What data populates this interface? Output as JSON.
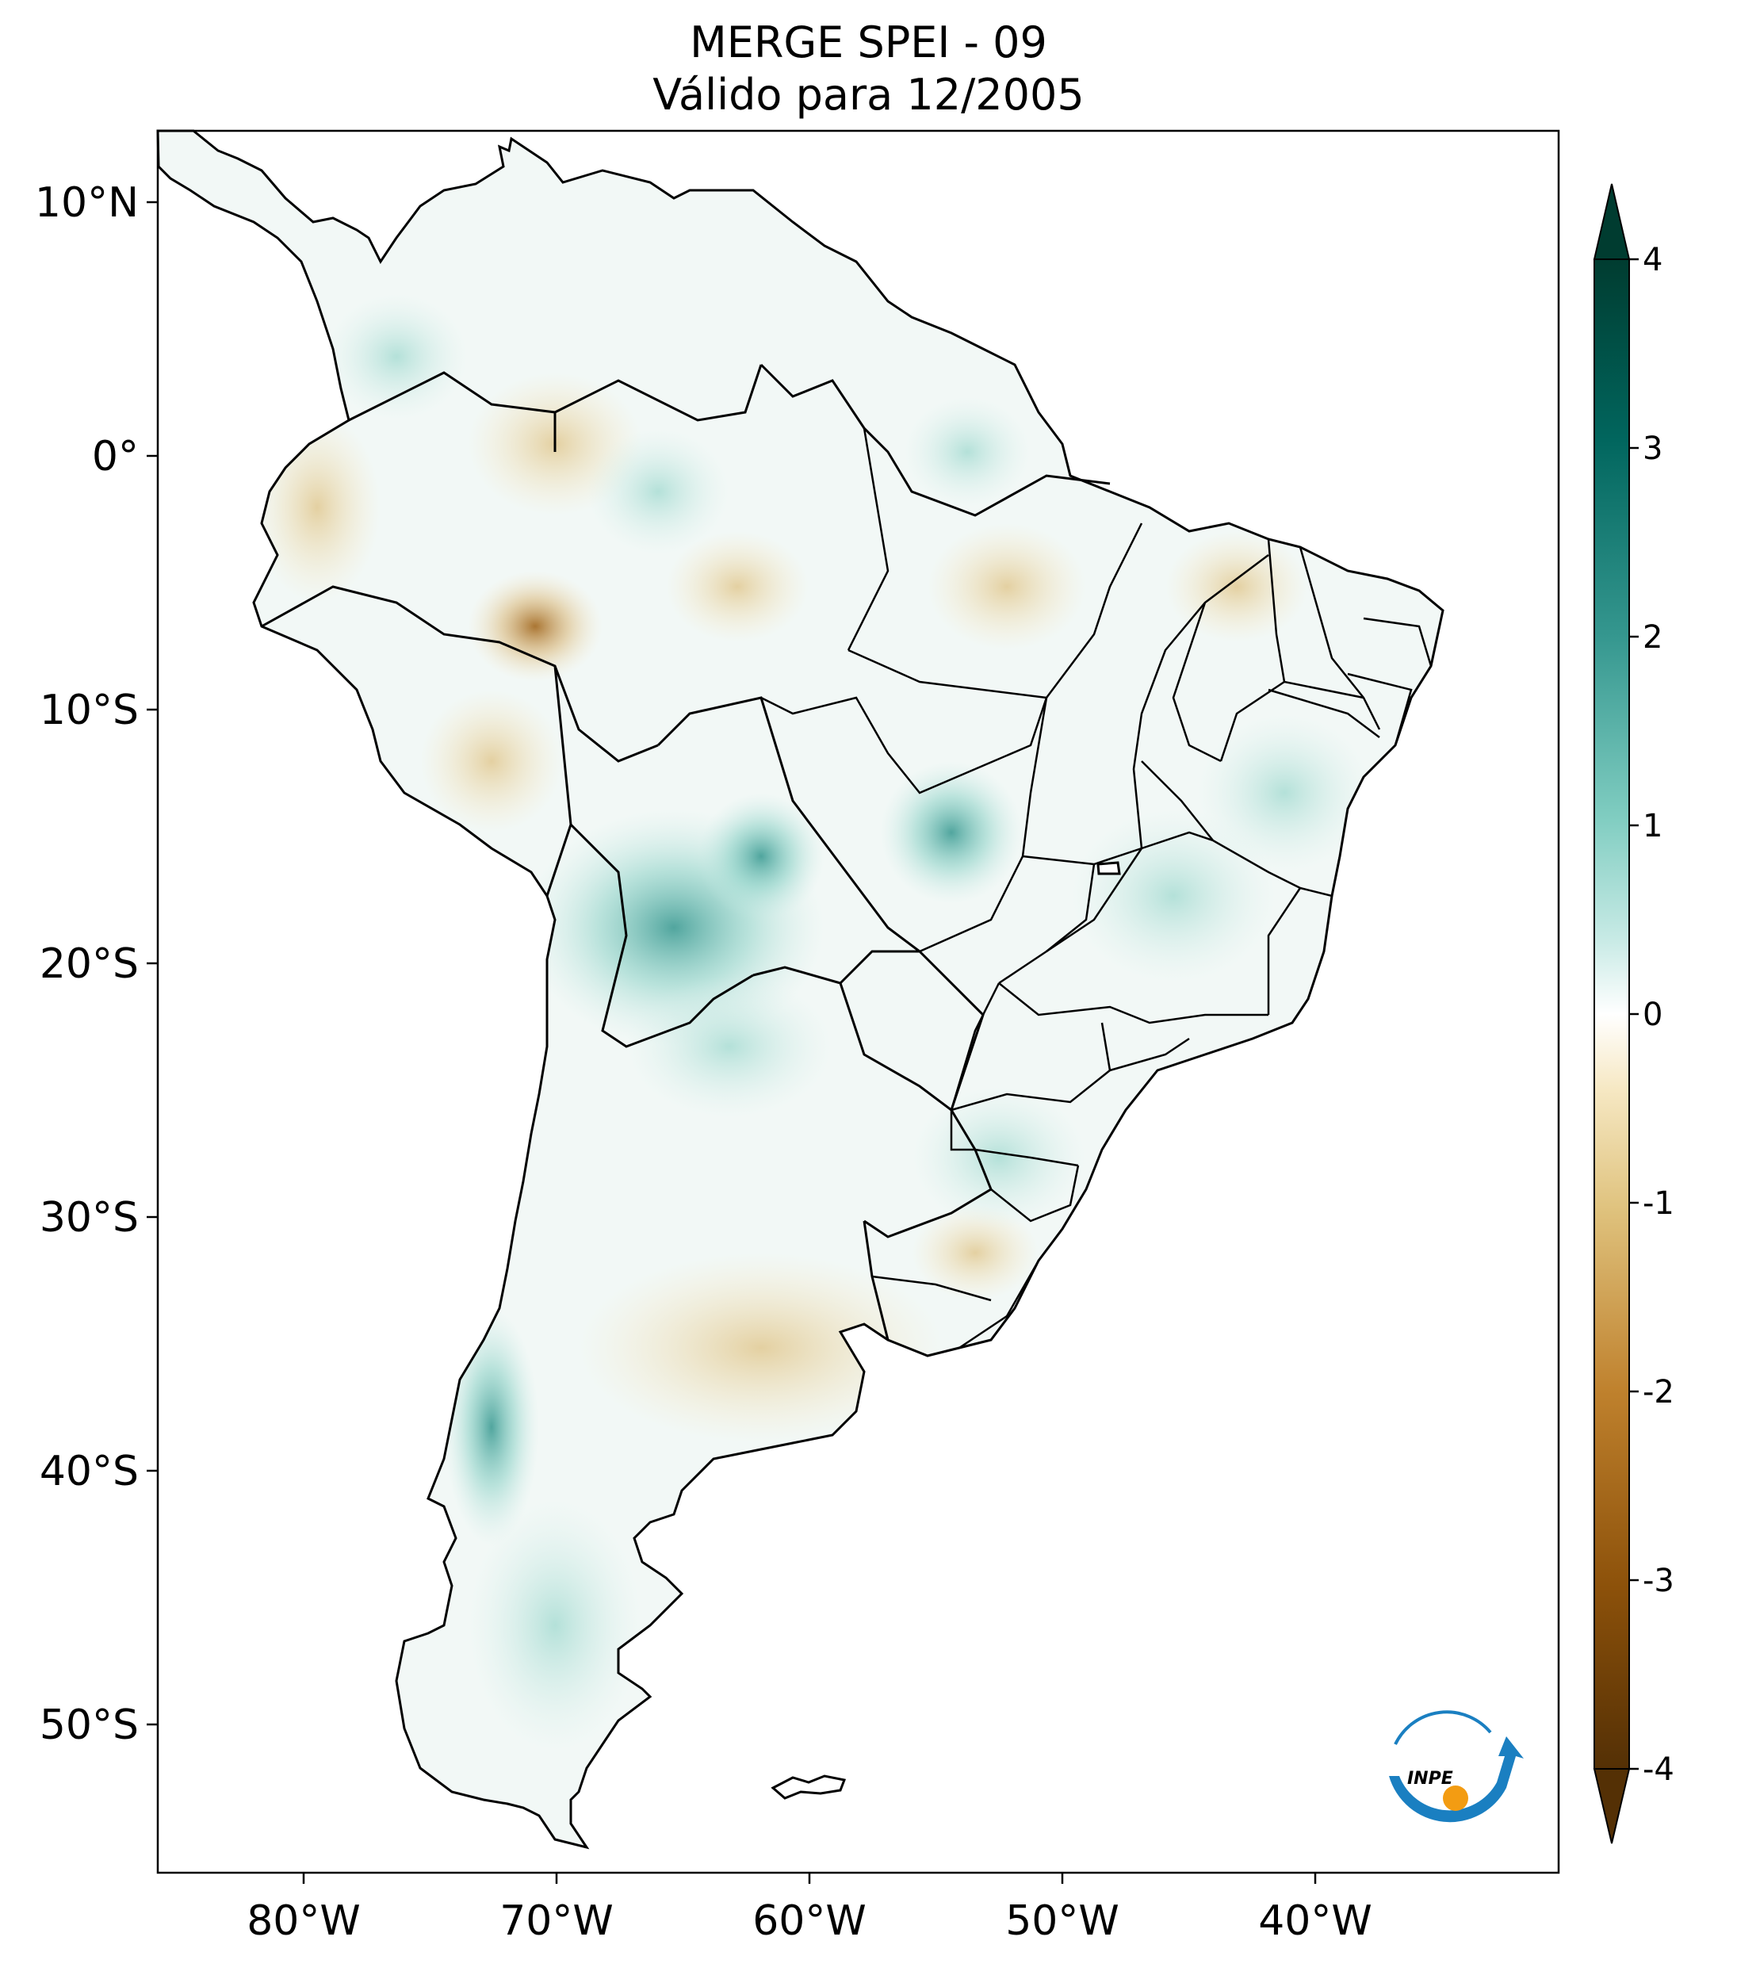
{
  "title": {
    "line1": "MERGE   SPEI - 09",
    "line2": "Válido para 12/2005"
  },
  "axes": {
    "lon_ticks": [
      "80°W",
      "70°W",
      "60°W",
      "50°W",
      "40°W"
    ],
    "lat_ticks": [
      "10°N",
      "0°",
      "10°S",
      "20°S",
      "30°S",
      "40°S",
      "50°S"
    ],
    "lon_range": [
      -85,
      -30
    ],
    "lat_range": [
      -56,
      13
    ]
  },
  "colorbar": {
    "ticks": [
      "4",
      "3",
      "2",
      "1",
      "0",
      "-1",
      "-2",
      "-3",
      "-4"
    ],
    "range": [
      -4,
      4
    ],
    "colormap": "BrBG",
    "extend": "both",
    "colors": {
      "dry_extreme": "#5a3505",
      "dry_strong": "#a2671d",
      "dry_moderate": "#dfc27d",
      "dry_mild": "#f3e4c0",
      "neutral": "#ffffff",
      "wet_mild": "#cfeee8",
      "wet_moderate": "#80cdc1",
      "wet_strong": "#35978f",
      "wet_extreme": "#01665e",
      "wet_max": "#003c30"
    }
  },
  "logo": {
    "text": "INPE",
    "icon": "inpe-logo-icon"
  }
}
